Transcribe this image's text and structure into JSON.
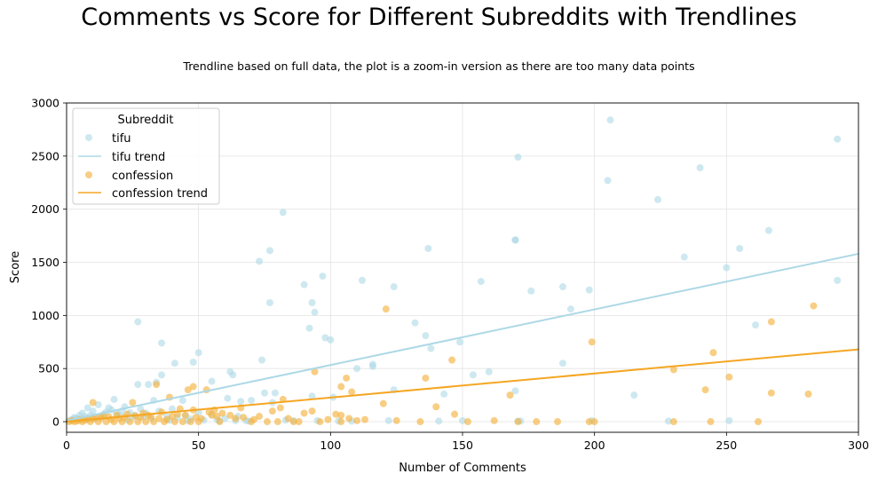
{
  "chart_data": {
    "type": "scatter",
    "title": "Comments vs Score for Different Subreddits with Trendlines",
    "subtitle": "Trendline based on full data, the plot is a zoom-in version as there are too many data points",
    "xlabel": "Number of Comments",
    "ylabel": "Score",
    "xlim": [
      0,
      300
    ],
    "ylim": [
      -100,
      3000
    ],
    "xticks": [
      0,
      50,
      100,
      150,
      200,
      250,
      300
    ],
    "yticks": [
      0,
      500,
      1000,
      1500,
      2000,
      2500,
      3000
    ],
    "grid": true,
    "legend": {
      "title": "Subreddit",
      "position": "top-left"
    },
    "series": [
      {
        "name": "tifu",
        "kind": "points",
        "color": "#add8e6",
        "points": [
          [
            206,
            2840
          ],
          [
            292,
            2660
          ],
          [
            171,
            2490
          ],
          [
            240,
            2390
          ],
          [
            205,
            2270
          ],
          [
            224,
            2090
          ],
          [
            82,
            1970
          ],
          [
            266,
            1800
          ],
          [
            170,
            1710
          ],
          [
            255,
            1630
          ],
          [
            137,
            1630
          ],
          [
            77,
            1610
          ],
          [
            234,
            1550
          ],
          [
            73,
            1510
          ],
          [
            250,
            1450
          ],
          [
            97,
            1370
          ],
          [
            112,
            1330
          ],
          [
            157,
            1320
          ],
          [
            292,
            1330
          ],
          [
            90,
            1290
          ],
          [
            124,
            1270
          ],
          [
            188,
            1270
          ],
          [
            176,
            1230
          ],
          [
            198,
            1240
          ],
          [
            77,
            1120
          ],
          [
            93,
            1120
          ],
          [
            191,
            1060
          ],
          [
            94,
            1030
          ],
          [
            27,
            940
          ],
          [
            132,
            930
          ],
          [
            261,
            910
          ],
          [
            92,
            880
          ],
          [
            136,
            810
          ],
          [
            98,
            790
          ],
          [
            100,
            770
          ],
          [
            170,
            1710
          ],
          [
            36,
            740
          ],
          [
            149,
            750
          ],
          [
            50,
            650
          ],
          [
            74,
            580
          ],
          [
            138,
            690
          ],
          [
            41,
            550
          ],
          [
            48,
            560
          ],
          [
            116,
            540
          ],
          [
            116,
            520
          ],
          [
            110,
            500
          ],
          [
            160,
            470
          ],
          [
            154,
            440
          ],
          [
            63,
            440
          ],
          [
            62,
            470
          ],
          [
            36,
            440
          ],
          [
            188,
            550
          ],
          [
            55,
            380
          ],
          [
            31,
            350
          ],
          [
            34,
            370
          ],
          [
            170,
            290
          ],
          [
            124,
            300
          ],
          [
            143,
            260
          ],
          [
            79,
            270
          ],
          [
            215,
            250
          ],
          [
            93,
            240
          ],
          [
            101,
            230
          ],
          [
            75,
            270
          ],
          [
            61,
            220
          ],
          [
            66,
            190
          ],
          [
            70,
            200
          ],
          [
            78,
            180
          ],
          [
            33,
            200
          ],
          [
            27,
            350
          ],
          [
            44,
            200
          ],
          [
            18,
            210
          ],
          [
            12,
            160
          ],
          [
            16,
            130
          ],
          [
            22,
            140
          ],
          [
            28,
            120
          ],
          [
            8,
            130
          ],
          [
            10,
            100
          ],
          [
            5,
            60
          ],
          [
            3,
            40
          ],
          [
            6,
            80
          ],
          [
            14,
            70
          ],
          [
            20,
            60
          ],
          [
            25,
            40
          ],
          [
            30,
            80
          ],
          [
            35,
            100
          ],
          [
            40,
            120
          ],
          [
            45,
            60
          ],
          [
            50,
            90
          ],
          [
            55,
            70
          ],
          [
            60,
            30
          ],
          [
            65,
            50
          ],
          [
            2,
            20
          ],
          [
            4,
            30
          ],
          [
            7,
            45
          ],
          [
            9,
            60
          ],
          [
            11,
            35
          ],
          [
            13,
            50
          ],
          [
            15,
            90
          ],
          [
            17,
            110
          ],
          [
            19,
            80
          ],
          [
            21,
            100
          ],
          [
            24,
            85
          ],
          [
            26,
            60
          ],
          [
            29,
            45
          ],
          [
            32,
            30
          ],
          [
            38,
            50
          ],
          [
            42,
            40
          ],
          [
            47,
            25
          ],
          [
            52,
            15
          ],
          [
            57,
            20
          ],
          [
            64,
            10
          ],
          [
            69,
            5
          ],
          [
            86,
            10
          ],
          [
            103,
            5
          ],
          [
            122,
            10
          ],
          [
            141,
            5
          ],
          [
            150,
            10
          ],
          [
            172,
            5
          ],
          [
            199,
            10
          ],
          [
            228,
            5
          ],
          [
            251,
            10
          ],
          [
            171,
            5
          ],
          [
            108,
            5
          ],
          [
            95,
            10
          ],
          [
            83,
            15
          ],
          [
            68,
            10
          ],
          [
            58,
            5
          ],
          [
            46,
            8
          ],
          [
            39,
            12
          ],
          [
            23,
            18
          ],
          [
            1,
            10
          ],
          [
            3,
            25
          ],
          [
            5,
            15
          ],
          [
            8,
            20
          ]
        ]
      },
      {
        "name": "tifu trend",
        "kind": "line",
        "color": "#add8e6",
        "points": [
          [
            0,
            10
          ],
          [
            300,
            1580
          ]
        ]
      },
      {
        "name": "confession",
        "kind": "points",
        "color": "#f5b342",
        "points": [
          [
            121,
            1060
          ],
          [
            283,
            1090
          ],
          [
            267,
            940
          ],
          [
            199,
            750
          ],
          [
            245,
            650
          ],
          [
            146,
            580
          ],
          [
            230,
            490
          ],
          [
            251,
            420
          ],
          [
            242,
            300
          ],
          [
            94,
            470
          ],
          [
            106,
            410
          ],
          [
            136,
            410
          ],
          [
            34,
            350
          ],
          [
            104,
            330
          ],
          [
            48,
            330
          ],
          [
            46,
            300
          ],
          [
            53,
            300
          ],
          [
            108,
            280
          ],
          [
            39,
            230
          ],
          [
            267,
            270
          ],
          [
            281,
            260
          ],
          [
            168,
            250
          ],
          [
            82,
            210
          ],
          [
            140,
            140
          ],
          [
            120,
            170
          ],
          [
            93,
            100
          ],
          [
            147,
            70
          ],
          [
            102,
            70
          ],
          [
            55,
            60
          ],
          [
            42,
            70
          ],
          [
            25,
            180
          ],
          [
            10,
            180
          ],
          [
            48,
            110
          ],
          [
            81,
            130
          ],
          [
            66,
            130
          ],
          [
            78,
            100
          ],
          [
            90,
            80
          ],
          [
            104,
            60
          ],
          [
            113,
            20
          ],
          [
            86,
            0
          ],
          [
            80,
            0
          ],
          [
            134,
            0
          ],
          [
            152,
            0
          ],
          [
            171,
            0
          ],
          [
            186,
            0
          ],
          [
            198,
            0
          ],
          [
            200,
            0
          ],
          [
            230,
            0
          ],
          [
            244,
            0
          ],
          [
            262,
            0
          ],
          [
            178,
            0
          ],
          [
            104,
            0
          ],
          [
            96,
            0
          ],
          [
            88,
            0
          ],
          [
            76,
            0
          ],
          [
            70,
            0
          ],
          [
            58,
            0
          ],
          [
            50,
            0
          ],
          [
            47,
            0
          ],
          [
            44,
            0
          ],
          [
            41,
            0
          ],
          [
            37,
            0
          ],
          [
            33,
            0
          ],
          [
            30,
            0
          ],
          [
            27,
            0
          ],
          [
            24,
            0
          ],
          [
            21,
            0
          ],
          [
            18,
            0
          ],
          [
            15,
            0
          ],
          [
            12,
            0
          ],
          [
            9,
            0
          ],
          [
            6,
            0
          ],
          [
            3,
            0
          ],
          [
            1,
            0
          ],
          [
            2,
            10
          ],
          [
            4,
            5
          ],
          [
            5,
            20
          ],
          [
            7,
            15
          ],
          [
            8,
            30
          ],
          [
            10,
            25
          ],
          [
            11,
            40
          ],
          [
            13,
            35
          ],
          [
            14,
            50
          ],
          [
            16,
            45
          ],
          [
            17,
            20
          ],
          [
            19,
            60
          ],
          [
            20,
            30
          ],
          [
            22,
            40
          ],
          [
            23,
            70
          ],
          [
            26,
            55
          ],
          [
            28,
            40
          ],
          [
            29,
            80
          ],
          [
            31,
            60
          ],
          [
            32,
            45
          ],
          [
            35,
            30
          ],
          [
            36,
            90
          ],
          [
            38,
            20
          ],
          [
            40,
            50
          ],
          [
            43,
            120
          ],
          [
            45,
            60
          ],
          [
            49,
            40
          ],
          [
            51,
            30
          ],
          [
            54,
            90
          ],
          [
            56,
            110
          ],
          [
            57,
            50
          ],
          [
            59,
            80
          ],
          [
            62,
            60
          ],
          [
            64,
            30
          ],
          [
            67,
            40
          ],
          [
            71,
            20
          ],
          [
            73,
            50
          ],
          [
            84,
            30
          ],
          [
            99,
            20
          ],
          [
            107,
            30
          ],
          [
            110,
            10
          ],
          [
            125,
            10
          ],
          [
            162,
            10
          ]
        ]
      },
      {
        "name": "confession trend",
        "kind": "line",
        "color": "#f5a623",
        "points": [
          [
            0,
            0
          ],
          [
            300,
            680
          ]
        ]
      }
    ]
  }
}
